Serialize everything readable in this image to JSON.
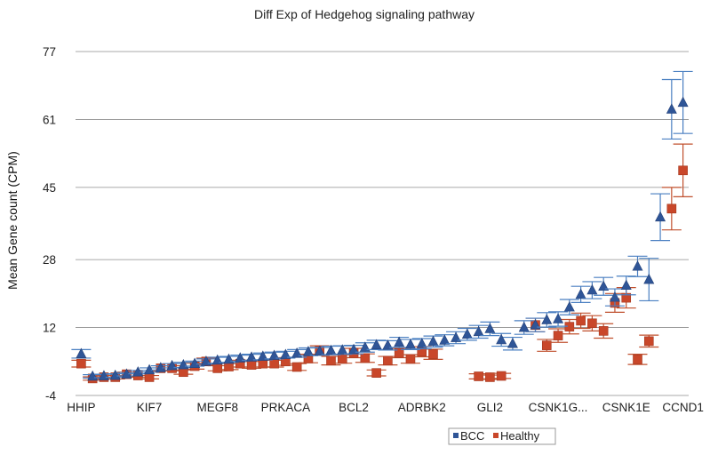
{
  "chart_data": {
    "type": "scatter",
    "title": "Diff Exp of Hedgehog signaling pathway",
    "xlabel": "",
    "ylabel": "Mean Gene count (CPM)",
    "ylim": [
      -4,
      77
    ],
    "yticks": [
      -4,
      12,
      28,
      45,
      61,
      77
    ],
    "ytick_labels": [
      "-4",
      "12",
      "28",
      "45",
      "61",
      "77"
    ],
    "grid": true,
    "legend_position": "bottom-center",
    "category_count": 54,
    "xtick_labels": [
      {
        "index": 0,
        "label": "HHIP"
      },
      {
        "index": 6,
        "label": "KIF7"
      },
      {
        "index": 12,
        "label": "MEGF8"
      },
      {
        "index": 18,
        "label": "PRKACA"
      },
      {
        "index": 24,
        "label": "BCL2"
      },
      {
        "index": 30,
        "label": "ADRBK2"
      },
      {
        "index": 36,
        "label": "GLI2"
      },
      {
        "index": 42,
        "label": "CSNK1G..."
      },
      {
        "index": 48,
        "label": "CSNK1E"
      },
      {
        "index": 53,
        "label": "CCND1"
      }
    ],
    "series": [
      {
        "name": "BCC",
        "color": "#2f5597",
        "error_color": "#4a7fc1",
        "marker": "triangle",
        "values": [
          5.8,
          0.5,
          0.6,
          0.7,
          1.0,
          1.5,
          2.0,
          2.5,
          3.0,
          3.2,
          3.5,
          4.0,
          4.3,
          4.5,
          4.8,
          5.0,
          5.2,
          5.4,
          5.6,
          5.9,
          6.3,
          6.4,
          6.6,
          6.7,
          6.8,
          7.3,
          7.9,
          7.8,
          8.5,
          8.0,
          8.2,
          8.7,
          9.0,
          9.6,
          10.4,
          11.0,
          11.7,
          9.1,
          8.2,
          12.0,
          12.6,
          13.8,
          14.0,
          16.8,
          19.8,
          20.8,
          21.7,
          19.1,
          21.9,
          26.4,
          23.3,
          38.0,
          63.4,
          65.0
        ],
        "errors": [
          1.0,
          0.4,
          0.4,
          0.4,
          0.4,
          0.4,
          0.5,
          0.5,
          0.5,
          0.6,
          0.6,
          0.6,
          0.7,
          0.7,
          0.7,
          0.7,
          0.8,
          0.8,
          0.8,
          0.9,
          0.9,
          0.9,
          1.0,
          1.0,
          1.0,
          1.1,
          1.1,
          1.1,
          1.2,
          1.2,
          1.2,
          1.3,
          1.3,
          1.4,
          1.4,
          1.5,
          1.6,
          1.5,
          1.5,
          1.6,
          1.6,
          1.7,
          1.7,
          1.8,
          1.9,
          2.0,
          2.1,
          2.0,
          2.2,
          2.4,
          5.0,
          5.5,
          7.0,
          7.3
        ]
      },
      {
        "name": "Healthy",
        "color": "#c9472a",
        "error_color": "#c0502e",
        "marker": "square",
        "values": [
          3.5,
          0.0,
          0.3,
          0.3,
          1.0,
          0.7,
          0.3,
          2.4,
          2.4,
          1.5,
          2.9,
          4.0,
          2.4,
          2.8,
          3.5,
          3.2,
          3.5,
          3.5,
          4.0,
          2.7,
          4.7,
          6.6,
          4.2,
          4.6,
          6.0,
          4.8,
          1.3,
          4.2,
          6.0,
          4.6,
          6.3,
          5.7,
          0.5,
          0.3,
          0.6,
          12.6,
          7.8,
          10.1,
          12.2,
          13.6,
          13.0,
          11.2,
          17.8,
          19.0,
          4.5,
          8.8,
          40.0,
          49.0
        ],
        "errors": [
          0.8,
          0.4,
          0.4,
          0.4,
          0.5,
          0.4,
          0.4,
          0.6,
          0.6,
          0.5,
          0.7,
          0.8,
          0.6,
          0.7,
          0.8,
          0.8,
          0.8,
          0.8,
          0.9,
          0.8,
          1.0,
          1.1,
          1.0,
          1.0,
          1.1,
          1.0,
          0.7,
          1.0,
          1.1,
          1.0,
          1.2,
          1.2,
          0.6,
          0.5,
          0.6,
          1.6,
          1.4,
          1.6,
          1.7,
          1.8,
          1.8,
          1.7,
          2.2,
          2.4,
          1.2,
          1.4,
          5.0,
          6.2
        ],
        "x_index": [
          0,
          1,
          2,
          3,
          4,
          5,
          6,
          7,
          8,
          9,
          10,
          11,
          12,
          13,
          14,
          15,
          16,
          17,
          18,
          19,
          20,
          21,
          22,
          23,
          24,
          25,
          26,
          27,
          28,
          29,
          30,
          31,
          35,
          36,
          37,
          40,
          41,
          42,
          43,
          44,
          45,
          46,
          47,
          48,
          49,
          50,
          52,
          53
        ]
      }
    ]
  }
}
